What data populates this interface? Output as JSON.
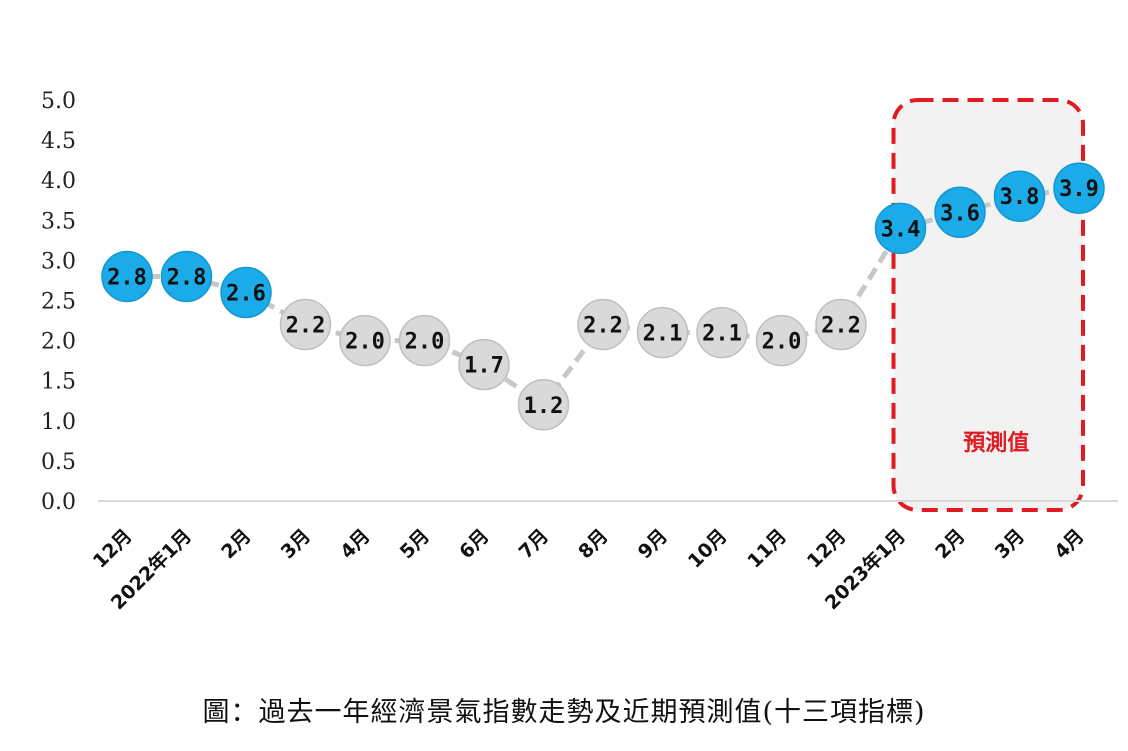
{
  "chart_data": {
    "type": "line",
    "categories": [
      "12月",
      "2022年1月",
      "2月",
      "3月",
      "4月",
      "5月",
      "6月",
      "7月",
      "8月",
      "9月",
      "10月",
      "11月",
      "12月",
      "2023年1月",
      "2月",
      "3月",
      "4月"
    ],
    "values": [
      2.8,
      2.8,
      2.6,
      2.2,
      2.0,
      2.0,
      1.7,
      1.2,
      2.2,
      2.1,
      2.1,
      2.0,
      2.2,
      3.4,
      3.6,
      3.8,
      3.9
    ],
    "data_labels": [
      "2.8",
      "2.8",
      "2.6",
      "2.2",
      "2.0",
      "2.0",
      "1.7",
      "1.2",
      "2.2",
      "2.1",
      "2.1",
      "2.0",
      "2.2",
      "3.4",
      "3.6",
      "3.8",
      "3.9"
    ],
    "highlight": [
      true,
      true,
      true,
      false,
      false,
      false,
      false,
      false,
      false,
      false,
      false,
      false,
      false,
      true,
      true,
      true,
      true
    ],
    "forecast_start_index": 13,
    "forecast_label": "預測值",
    "ylim": [
      0,
      5
    ],
    "yticks": [
      0,
      0.5,
      1.0,
      1.5,
      2.0,
      2.5,
      3.0,
      3.5,
      4.0,
      4.5,
      5.0
    ],
    "ytick_labels": [
      "0.0",
      "0.5",
      "1.0",
      "1.5",
      "2.0",
      "2.5",
      "3.0",
      "3.5",
      "4.0",
      "4.5",
      "5.0"
    ],
    "title": "",
    "xlabel": "",
    "ylabel": "",
    "grid": false,
    "colors": {
      "highlight_marker": "#1aabe8",
      "normal_marker": "#d9d9d9",
      "marker_stroke": "#bfbfbf",
      "line": "#c8c8c8",
      "forecast_border": "#e01b22",
      "forecast_fill": "#f2f2f2"
    }
  },
  "caption": "圖：過去一年經濟景氣指數走勢及近期預測值(十三項指標)"
}
